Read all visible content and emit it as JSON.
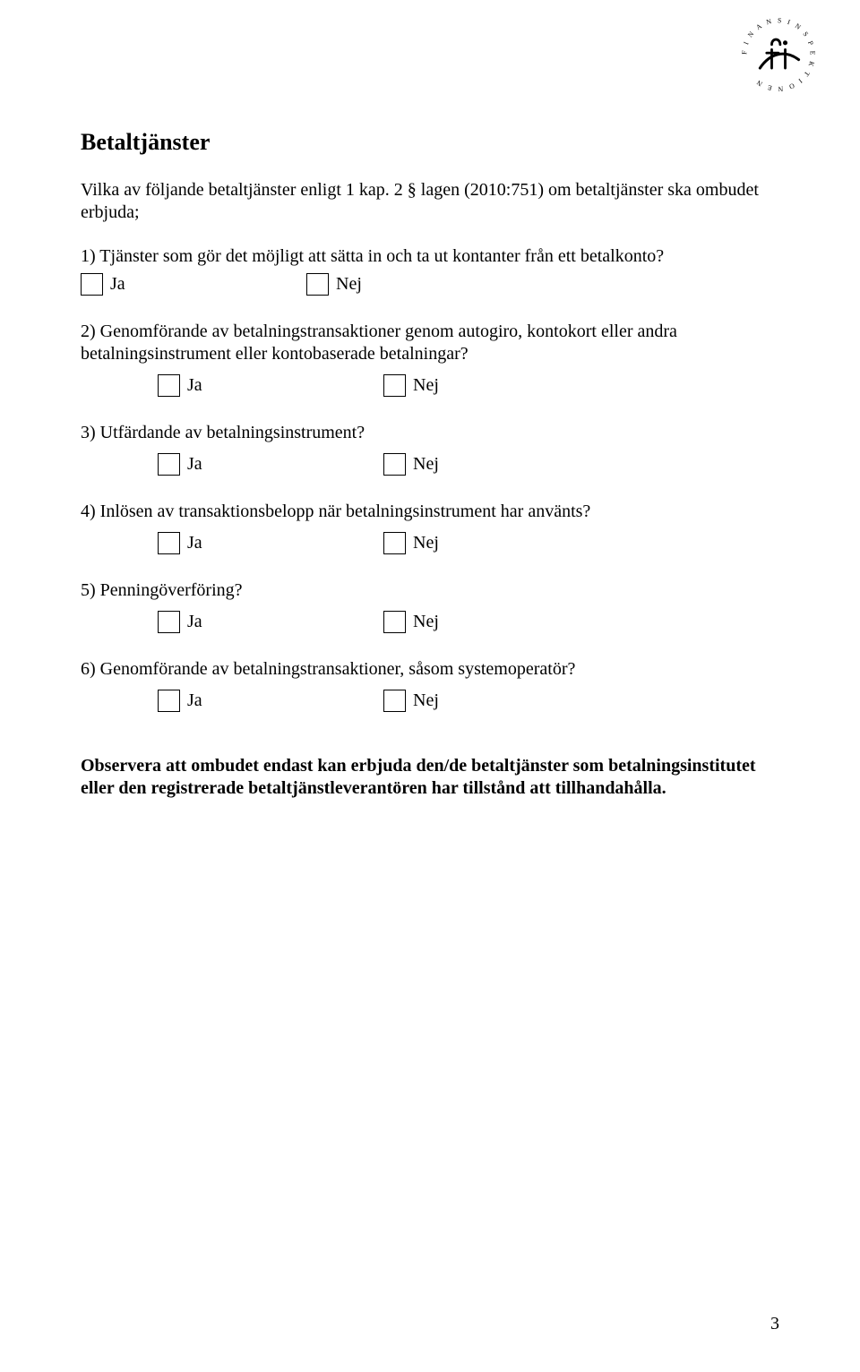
{
  "logo": {
    "ring_text": "F I N A N S I N S P E K T I O N E N",
    "stroke_color": "#000000"
  },
  "heading": "Betaltjänster",
  "intro": "Vilka av följande betaltjänster enligt 1 kap. 2 § lagen (2010:751) om betaltjänster ska ombudet erbjuda;",
  "choices": {
    "yes": "Ja",
    "no": "Nej"
  },
  "questions": [
    {
      "text": "1) Tjänster som gör det möjligt att sätta in och ta ut kontanter från ett betalkonto?",
      "indented": false
    },
    {
      "text": "2) Genomförande av betalningstransaktioner genom autogiro, kontokort eller andra betalningsinstrument eller kontobaserade betalningar?",
      "indented": true
    },
    {
      "text": "3) Utfärdande av betalningsinstrument?",
      "indented": true
    },
    {
      "text": "4) Inlösen av transaktionsbelopp när betalningsinstrument har använts?",
      "indented": true
    },
    {
      "text": "5) Penningöverföring?",
      "indented": true
    },
    {
      "text": "6) Genomförande av betalningstransaktioner, såsom systemoperatör?",
      "indented": true
    }
  ],
  "observe": "Observera att ombudet endast kan erbjuda den/de betaltjänster som betalningsinstitutet eller den registrerade betaltjänstleverantören har tillstånd att tillhandahålla.",
  "page_number": "3",
  "colors": {
    "background": "#ffffff",
    "text": "#000000",
    "checkbox_border": "#000000"
  },
  "typography": {
    "body_fontsize_pt": 15,
    "heading_fontsize_pt": 19,
    "font_family": "Times New Roman"
  }
}
